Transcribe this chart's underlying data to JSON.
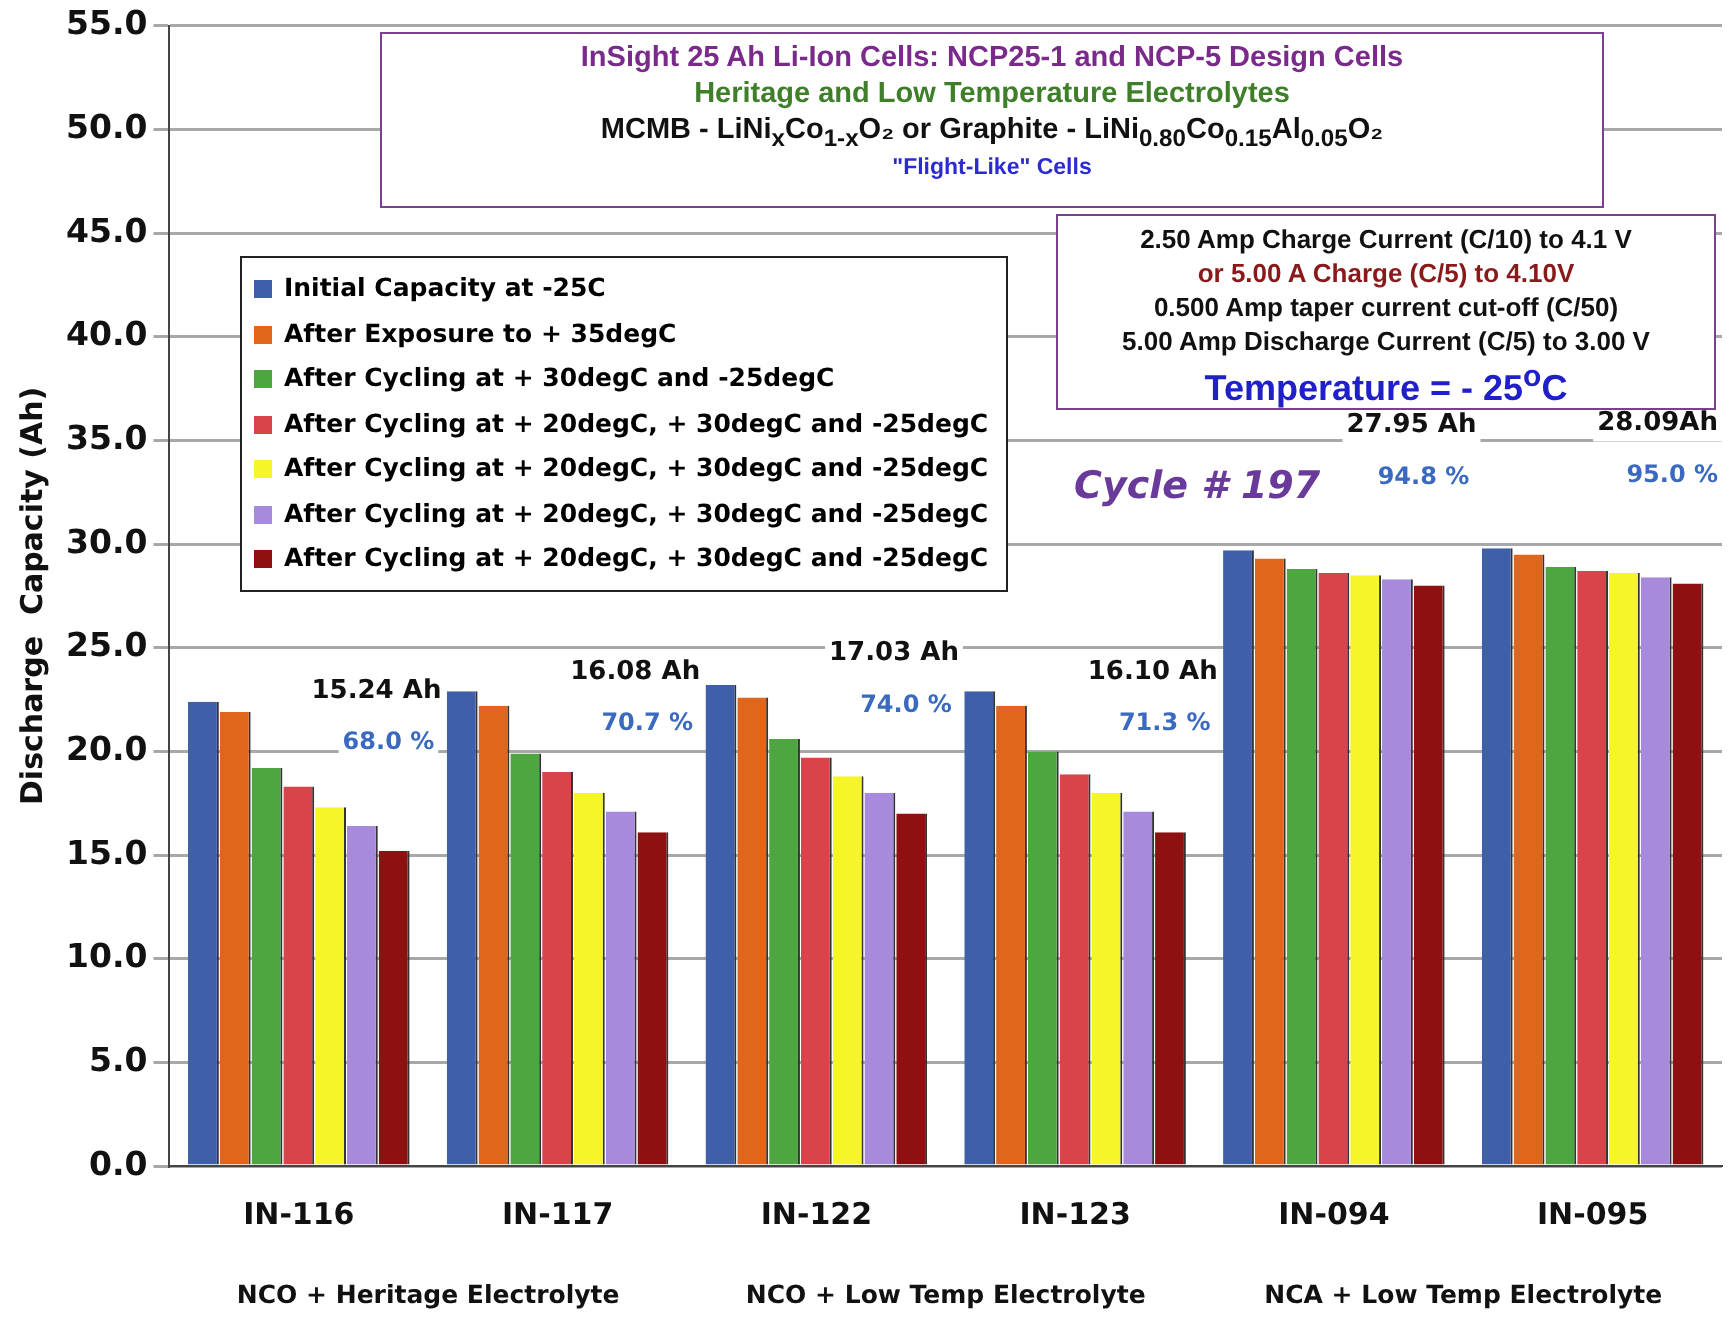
{
  "chart_data": {
    "type": "bar",
    "title": "InSight 25 Ah Li-Ion Cells: NCP25-1 and NCP-5 Design Cells",
    "subtitle": "Heritage and Low Temperature Electrolytes",
    "ylabel": "Discharge  Capacity (Ah)",
    "categories": [
      "IN-116",
      "IN-117",
      "IN-122",
      "IN-123",
      "IN-094",
      "IN-095"
    ],
    "series": [
      {
        "name": "Initial Capacity at -25C",
        "color": "#3f5fa8",
        "values": [
          22.4,
          22.9,
          23.2,
          22.9,
          29.7,
          29.8
        ]
      },
      {
        "name": "After Exposure to + 35degC",
        "color": "#e0661c",
        "values": [
          21.9,
          22.2,
          22.6,
          22.2,
          29.3,
          29.5
        ]
      },
      {
        "name": "After Cycling at + 30degC and -25degC",
        "color": "#4ea640",
        "values": [
          19.2,
          19.9,
          20.6,
          20.0,
          28.8,
          28.9
        ]
      },
      {
        "name": "After Cycling at + 20degC, + 30degC and -25degC",
        "color": "#d9434a",
        "values": [
          18.3,
          19.0,
          19.7,
          18.9,
          28.6,
          28.7
        ]
      },
      {
        "name": "After Cycling at + 20degC, + 30degC and -25degC",
        "color": "#f5f52a",
        "values": [
          17.3,
          18.0,
          18.8,
          18.0,
          28.5,
          28.6
        ]
      },
      {
        "name": "After Cycling at + 20degC, + 30degC and -25degC",
        "color": "#a88adc",
        "values": [
          16.4,
          17.1,
          18.0,
          17.1,
          28.3,
          28.4
        ]
      },
      {
        "name": "After Cycling at + 20degC, + 30degC and -25degC",
        "color": "#8f1010",
        "values": [
          15.2,
          16.1,
          17.0,
          16.1,
          28.0,
          28.1
        ]
      }
    ],
    "ylim": [
      0,
      55
    ],
    "yticks": [
      {
        "value": 0,
        "label": "0.0"
      },
      {
        "value": 5,
        "label": "5.0"
      },
      {
        "value": 10,
        "label": "10.0"
      },
      {
        "value": 15,
        "label": "15.0"
      },
      {
        "value": 20,
        "label": "20.0"
      },
      {
        "value": 25,
        "label": "25.0"
      },
      {
        "value": 30,
        "label": "30.0"
      },
      {
        "value": 35,
        "label": "35.0"
      },
      {
        "value": 40,
        "label": "40.0"
      },
      {
        "value": 45,
        "label": "45.0"
      },
      {
        "value": 50,
        "label": "50.0"
      },
      {
        "value": 55,
        "label": "55.0"
      }
    ],
    "grid": "y",
    "legend": "top left",
    "annotations": [
      "MCMB - LiNi$_{x}$Co$_{1-x}$O₂ or Graphite - LiNi$_{0.80}$Co$_{0.15}$Al$_{0.05}$O₂",
      "\"Flight-Like\" Cells",
      "2.50 Amp  Charge Current (C/10) to 4.1 V",
      "or 5.00 A  Charge (C/5) to 4.10V",
      "0.500 Amp  taper current cut-off (C/50)",
      "5.00 Amp  Discharge Current (C/5) to 3.00 V",
      "Temperature = - 25$^{o}$C",
      "Cycle # 197",
      "NCO + Heritage Electrolyte",
      "NCO + Low Temp Electrolyte",
      "NCA + Low Temp Electrolyte",
      "15.24 Ah",
      "68.0 %",
      "16.08 Ah",
      "70.7 %",
      "17.03 Ah",
      "74.0 %",
      "16.10 Ah",
      "71.3 %",
      "27.95 Ah",
      "94.8 %",
      "28.09Ah",
      "95.0 %"
    ]
  }
}
